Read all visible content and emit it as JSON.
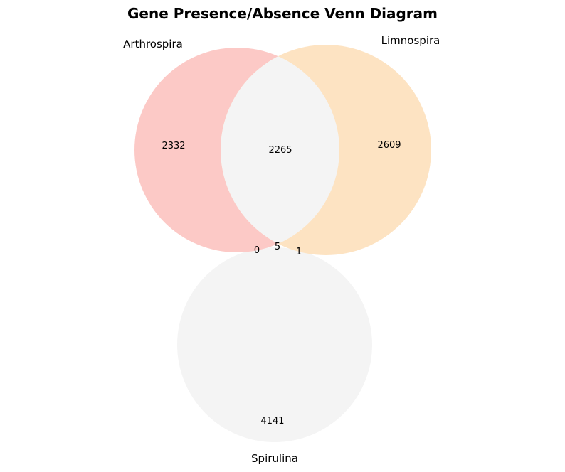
{
  "title": "Gene Presence/Absence Venn Diagram",
  "sets": {
    "a": {
      "label": "Arthrospira",
      "color": "#fcc9c6"
    },
    "b": {
      "label": "Limnospira",
      "color": "#fde3c2"
    },
    "c": {
      "label": "Spirulina",
      "color": "#f4f4f4"
    }
  },
  "overlap_color": "#f4f4f4",
  "regions": {
    "a_only": "2332",
    "b_only": "2609",
    "c_only": "4141",
    "ab_only": "2265",
    "ac_only": "0",
    "bc_only": "1",
    "abc": "5"
  }
}
